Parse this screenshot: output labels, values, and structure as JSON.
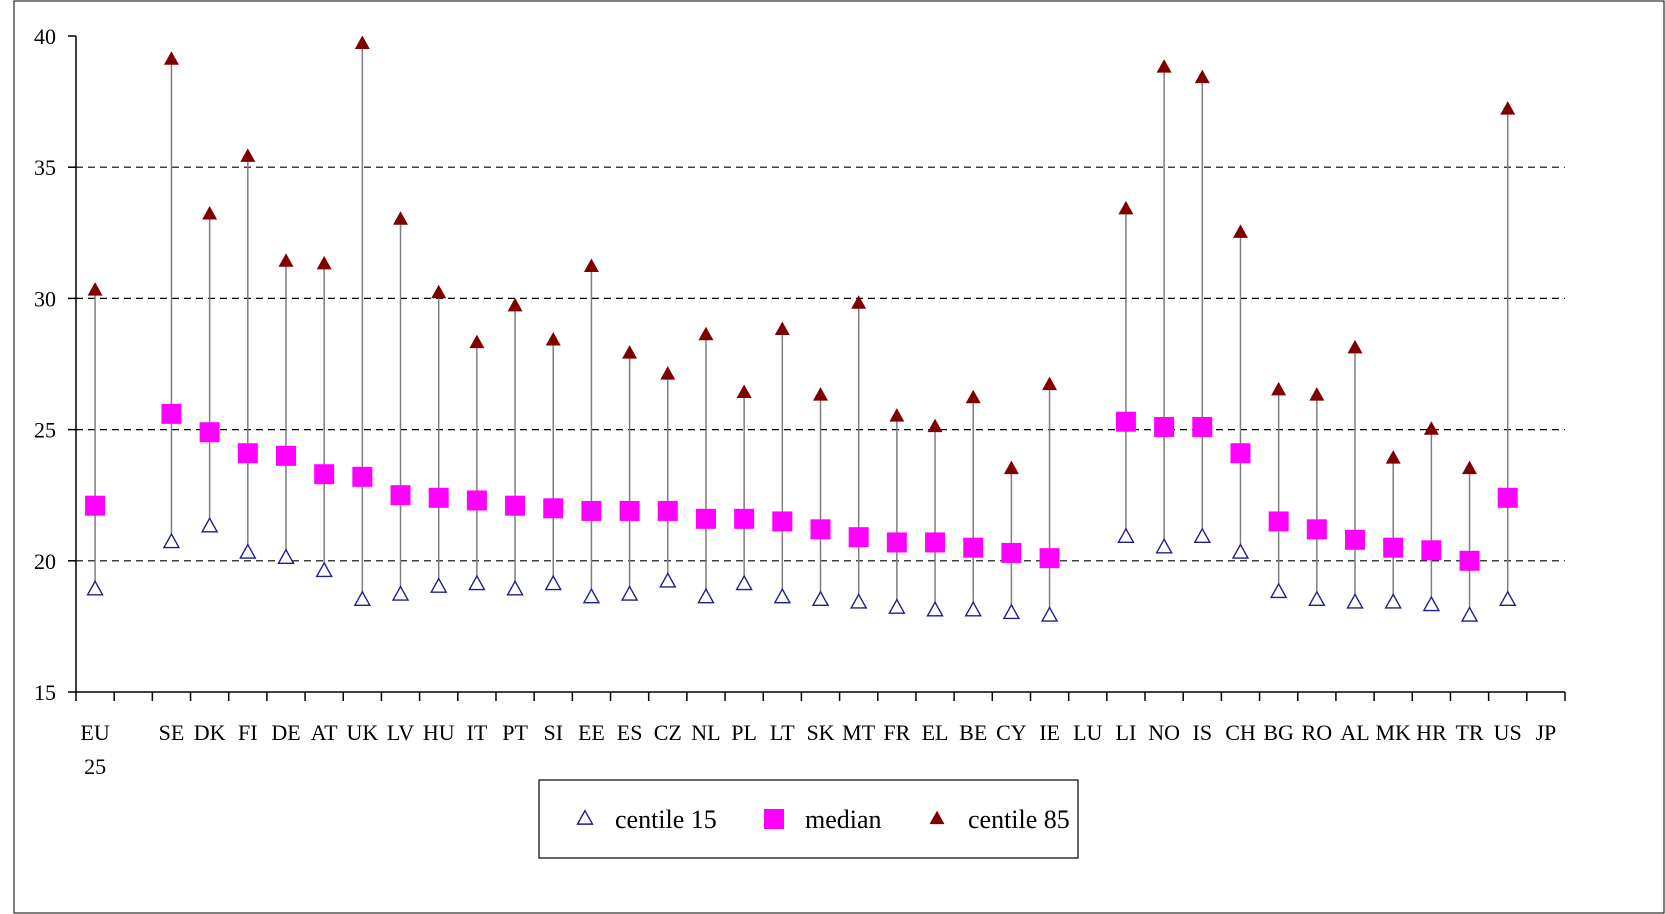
{
  "chart_data": {
    "type": "scatter",
    "categories": [
      "EU 25",
      "",
      "SE",
      "DK",
      "FI",
      "DE",
      "AT",
      "UK",
      "LV",
      "HU",
      "IT",
      "PT",
      "SI",
      "EE",
      "ES",
      "CZ",
      "NL",
      "PL",
      "LT",
      "SK",
      "MT",
      "FR",
      "EL",
      "BE",
      "CY",
      "IE",
      "LU",
      "LI",
      "NO",
      "IS",
      "CH",
      "BG",
      "RO",
      "AL",
      "MK",
      "HR",
      "TR",
      "US",
      "JP"
    ],
    "category_lines": [
      [
        "EU",
        "25"
      ],
      [
        ""
      ],
      [
        "SE"
      ],
      [
        "DK"
      ],
      [
        "FI"
      ],
      [
        "DE"
      ],
      [
        "AT"
      ],
      [
        "UK"
      ],
      [
        "LV"
      ],
      [
        "HU"
      ],
      [
        "IT"
      ],
      [
        "PT"
      ],
      [
        "SI"
      ],
      [
        "EE"
      ],
      [
        "ES"
      ],
      [
        "CZ"
      ],
      [
        "NL"
      ],
      [
        "PL"
      ],
      [
        "LT"
      ],
      [
        "SK"
      ],
      [
        "MT"
      ],
      [
        "FR"
      ],
      [
        "EL"
      ],
      [
        "BE"
      ],
      [
        "CY"
      ],
      [
        "IE"
      ],
      [
        "LU"
      ],
      [
        "LI"
      ],
      [
        "NO"
      ],
      [
        "IS"
      ],
      [
        "CH"
      ],
      [
        "BG"
      ],
      [
        "RO"
      ],
      [
        "AL"
      ],
      [
        "MK"
      ],
      [
        "HR"
      ],
      [
        "TR"
      ],
      [
        "US"
      ],
      [
        "JP"
      ]
    ],
    "series": [
      {
        "name": "centile 15",
        "values": [
          18.9,
          null,
          20.7,
          21.3,
          20.3,
          20.1,
          19.6,
          18.5,
          18.7,
          19.0,
          19.1,
          18.9,
          19.1,
          18.6,
          18.7,
          19.2,
          18.6,
          19.1,
          18.6,
          18.5,
          18.4,
          18.2,
          18.1,
          18.1,
          18.0,
          17.9,
          null,
          20.9,
          20.5,
          20.9,
          20.3,
          18.8,
          18.5,
          18.4,
          18.4,
          18.3,
          17.9,
          18.5,
          null
        ]
      },
      {
        "name": "median",
        "values": [
          22.1,
          null,
          25.6,
          24.9,
          24.1,
          24.0,
          23.3,
          23.2,
          22.5,
          22.4,
          22.3,
          22.1,
          22.0,
          21.9,
          21.9,
          21.9,
          21.6,
          21.6,
          21.5,
          21.2,
          20.9,
          20.7,
          20.7,
          20.5,
          20.3,
          20.1,
          null,
          25.3,
          25.1,
          25.1,
          24.1,
          21.5,
          21.2,
          20.8,
          20.5,
          20.4,
          20.0,
          22.4,
          null
        ]
      },
      {
        "name": "centile 85",
        "values": [
          30.3,
          null,
          39.1,
          33.2,
          35.4,
          31.4,
          31.3,
          39.7,
          33.0,
          30.2,
          28.3,
          29.7,
          28.4,
          31.2,
          27.9,
          27.1,
          28.6,
          26.4,
          28.8,
          26.3,
          29.8,
          25.5,
          25.1,
          26.2,
          23.5,
          26.7,
          null,
          33.4,
          38.8,
          38.4,
          32.5,
          26.5,
          26.3,
          28.1,
          23.9,
          25.0,
          23.5,
          37.2,
          null
        ]
      }
    ],
    "ylim": [
      15,
      40
    ],
    "yticks": [
      15,
      20,
      25,
      30,
      35,
      40
    ],
    "gridlines": [
      20,
      25,
      30,
      35
    ],
    "legend_position": "bottom-center",
    "colors": {
      "centile 15": "#1f1f8c",
      "median": "#ff00ff",
      "centile 85": "#800000",
      "range_line": "#7f7f7f",
      "grid": "#000000"
    }
  }
}
